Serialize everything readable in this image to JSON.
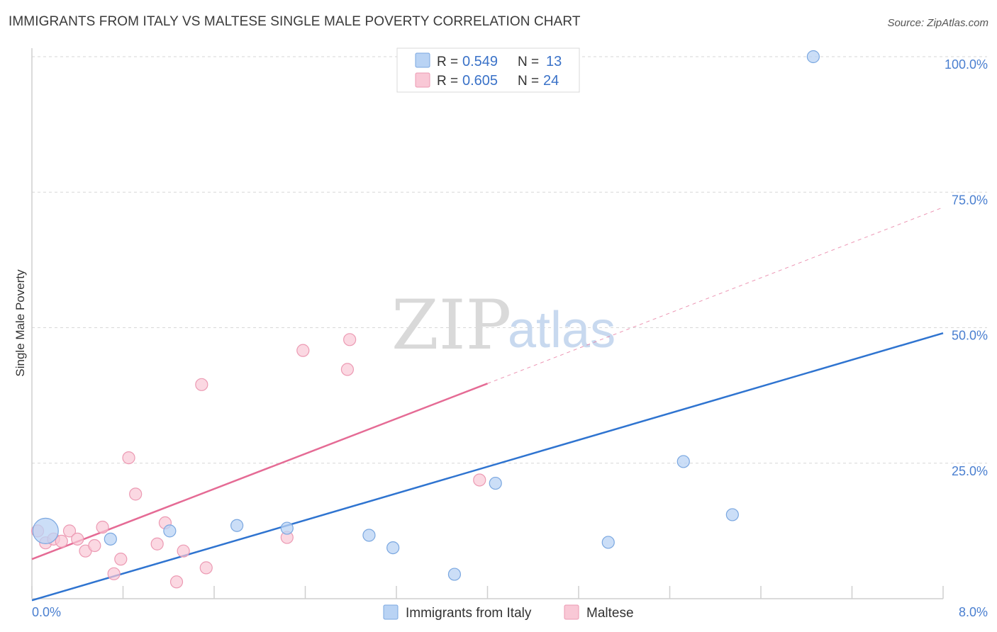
{
  "header": {
    "title": "IMMIGRANTS FROM ITALY VS MALTESE SINGLE MALE POVERTY CORRELATION CHART",
    "source": "Source: ZipAtlas.com"
  },
  "watermark": {
    "zip": "ZIP",
    "atlas": "atlas"
  },
  "colors": {
    "blue_fill": "#b9d3f4",
    "blue_stroke": "#7aa7e0",
    "blue_line": "#2f74d0",
    "pink_fill": "#f9c8d6",
    "pink_stroke": "#ec9ab3",
    "pink_line": "#e56b95",
    "grid": "#d7d7d7",
    "tick_label": "#4a7fd0"
  },
  "legend": {
    "rows": [
      {
        "r_label": "R =",
        "r_value": "0.549",
        "n_label": "N =",
        "n_value": "13"
      },
      {
        "r_label": "R =",
        "r_value": "0.605",
        "n_label": "N =",
        "n_value": "24"
      }
    ]
  },
  "chart_data": {
    "type": "scatter",
    "ylabel": "Single Male Poverty",
    "xlim": [
      0,
      8
    ],
    "ylim": [
      0,
      100
    ],
    "x_tick_labels": [
      {
        "value": 0,
        "label": "0.0%"
      },
      {
        "value": 8,
        "label": "8.0%"
      }
    ],
    "y_tick_labels": [
      {
        "value": 25,
        "label": "25.0%"
      },
      {
        "value": 50,
        "label": "50.0%"
      },
      {
        "value": 75,
        "label": "75.0%"
      },
      {
        "value": 100,
        "label": "100.0%"
      }
    ],
    "grid": true,
    "legend_position": "top-center",
    "series": [
      {
        "name": "Immigrants from Italy",
        "color": "blue",
        "points": [
          {
            "x": 0.12,
            "y": 12.5,
            "big": true
          },
          {
            "x": 0.69,
            "y": 11.0
          },
          {
            "x": 1.21,
            "y": 12.5
          },
          {
            "x": 1.8,
            "y": 13.5
          },
          {
            "x": 2.24,
            "y": 13.0
          },
          {
            "x": 2.96,
            "y": 11.7
          },
          {
            "x": 3.17,
            "y": 9.4
          },
          {
            "x": 3.71,
            "y": 4.5
          },
          {
            "x": 4.07,
            "y": 21.3
          },
          {
            "x": 5.06,
            "y": 10.4
          },
          {
            "x": 5.72,
            "y": 25.3
          },
          {
            "x": 6.15,
            "y": 15.5
          },
          {
            "x": 6.86,
            "y": 100.0
          }
        ],
        "trend": {
          "x0": 0.0,
          "y0": -0.3,
          "x1": 8.0,
          "y1": 49.0
        }
      },
      {
        "name": "Maltese",
        "color": "pink",
        "points": [
          {
            "x": 0.05,
            "y": 12.5
          },
          {
            "x": 0.12,
            "y": 10.3
          },
          {
            "x": 0.19,
            "y": 11.0
          },
          {
            "x": 0.26,
            "y": 10.6
          },
          {
            "x": 0.33,
            "y": 12.5
          },
          {
            "x": 0.4,
            "y": 11.0
          },
          {
            "x": 0.47,
            "y": 8.8
          },
          {
            "x": 0.55,
            "y": 9.8
          },
          {
            "x": 0.62,
            "y": 13.2
          },
          {
            "x": 0.72,
            "y": 4.6
          },
          {
            "x": 0.78,
            "y": 7.3
          },
          {
            "x": 0.85,
            "y": 26.0
          },
          {
            "x": 0.91,
            "y": 19.3
          },
          {
            "x": 1.1,
            "y": 10.1
          },
          {
            "x": 1.17,
            "y": 14.0
          },
          {
            "x": 1.27,
            "y": 3.1
          },
          {
            "x": 1.33,
            "y": 8.8
          },
          {
            "x": 1.49,
            "y": 39.5
          },
          {
            "x": 1.53,
            "y": 5.7
          },
          {
            "x": 2.24,
            "y": 11.3
          },
          {
            "x": 2.38,
            "y": 45.8
          },
          {
            "x": 2.77,
            "y": 42.3
          },
          {
            "x": 2.79,
            "y": 47.8
          },
          {
            "x": 3.93,
            "y": 21.9
          }
        ],
        "trend": {
          "x0": 0.0,
          "y0": 7.3,
          "x1": 4.0,
          "y1": 39.7
        },
        "trend_dashed": {
          "x0": 4.0,
          "y0": 39.7,
          "x1": 8.0,
          "y1": 72.2
        }
      }
    ]
  }
}
